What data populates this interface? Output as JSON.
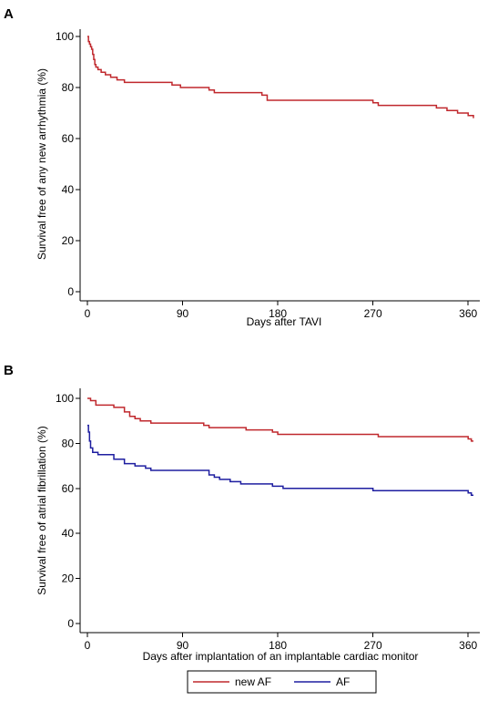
{
  "chart_data": [
    {
      "type": "line",
      "step": true,
      "panel_label": "A",
      "xlabel": "Days after TAVI",
      "ylabel": "Survival free of any new arrhythmia (%)",
      "xlim": [
        0,
        365
      ],
      "ylim": [
        0,
        100
      ],
      "xticks": [
        0,
        90,
        180,
        270,
        360
      ],
      "yticks": [
        0,
        20,
        40,
        60,
        80,
        100
      ],
      "grid": false,
      "series": [
        {
          "color": "#c0282d",
          "x": [
            0,
            1,
            2,
            3,
            4,
            5,
            6,
            7,
            8,
            10,
            13,
            17,
            22,
            28,
            35,
            80,
            88,
            115,
            120,
            165,
            170,
            270,
            275,
            330,
            340,
            350,
            360,
            365
          ],
          "y": [
            100,
            98,
            97,
            96,
            95,
            93,
            91,
            89,
            88,
            87,
            86,
            85,
            84,
            83,
            82,
            81,
            80,
            79,
            78,
            77,
            75,
            74,
            73,
            72,
            71,
            70,
            69,
            68
          ]
        }
      ]
    },
    {
      "type": "line",
      "step": true,
      "panel_label": "B",
      "xlabel": "Days after implantation of an implantable cardiac monitor",
      "ylabel": "Survival free of atrial fibrillation (%)",
      "xlim": [
        0,
        365
      ],
      "ylim": [
        0,
        100
      ],
      "xticks": [
        0,
        90,
        180,
        270,
        360
      ],
      "yticks": [
        0,
        20,
        40,
        60,
        80,
        100
      ],
      "grid": false,
      "legend_position": "bottom",
      "series": [
        {
          "name": "new AF",
          "color": "#c0282d",
          "x": [
            0,
            3,
            8,
            25,
            35,
            40,
            45,
            50,
            60,
            110,
            115,
            150,
            175,
            180,
            275,
            360,
            363,
            365
          ],
          "y": [
            100,
            99,
            97,
            96,
            94,
            92,
            91,
            90,
            89,
            88,
            87,
            86,
            85,
            84,
            83,
            82,
            81,
            81
          ]
        },
        {
          "name": "AF",
          "color": "#1e1ea0",
          "x": [
            0,
            1,
            2,
            3,
            5,
            10,
            25,
            35,
            45,
            55,
            60,
            115,
            120,
            125,
            135,
            145,
            175,
            185,
            270,
            360,
            363,
            365
          ],
          "y": [
            88,
            85,
            81,
            78,
            76,
            75,
            73,
            71,
            70,
            69,
            68,
            66,
            65,
            64,
            63,
            62,
            61,
            60,
            59,
            58,
            57,
            57
          ]
        }
      ]
    }
  ]
}
